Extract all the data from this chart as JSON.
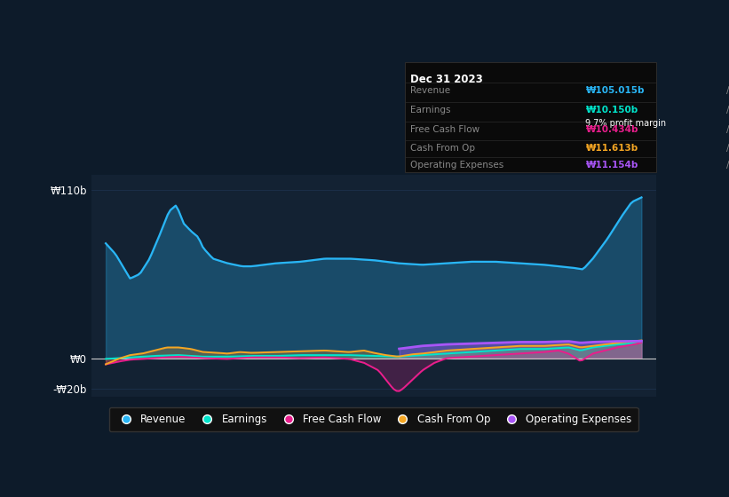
{
  "bg_color": "#0d1b2a",
  "plot_bg_color": "#132233",
  "revenue_color": "#29b6f6",
  "earnings_color": "#00e5cc",
  "fcf_color": "#e91e8c",
  "cashop_color": "#f5a623",
  "opex_color": "#a855f7",
  "grid_color": "#1e3450",
  "zero_line_color": "#cccccc",
  "xlim_start": 2012.7,
  "xlim_end": 2024.3,
  "ylim_bottom": -25,
  "ylim_top": 120,
  "ytick_vals": [
    110,
    0,
    -20
  ],
  "ytick_labels": [
    "₩110b",
    "₩0",
    "-₩20b"
  ],
  "xtick_vals": [
    2014,
    2015,
    2016,
    2017,
    2018,
    2019,
    2020,
    2021,
    2022,
    2023
  ],
  "legend_items": [
    "Revenue",
    "Earnings",
    "Free Cash Flow",
    "Cash From Op",
    "Operating Expenses"
  ],
  "legend_colors": [
    "#29b6f6",
    "#00e5cc",
    "#e91e8c",
    "#f5a623",
    "#a855f7"
  ],
  "tooltip_date": "Dec 31 2023",
  "tooltip_rows": [
    {
      "label": "Revenue",
      "val": "₩105.015b",
      "color": "#29b6f6",
      "sub": null
    },
    {
      "label": "Earnings",
      "val": "₩10.150b",
      "color": "#00e5cc",
      "sub": "9.7% profit margin"
    },
    {
      "label": "Free Cash Flow",
      "val": "₩10.434b",
      "color": "#e91e8c",
      "sub": null
    },
    {
      "label": "Cash From Op",
      "val": "₩11.613b",
      "color": "#f5a623",
      "sub": null
    },
    {
      "label": "Operating Expenses",
      "val": "₩11.154b",
      "color": "#a855f7",
      "sub": null
    }
  ]
}
